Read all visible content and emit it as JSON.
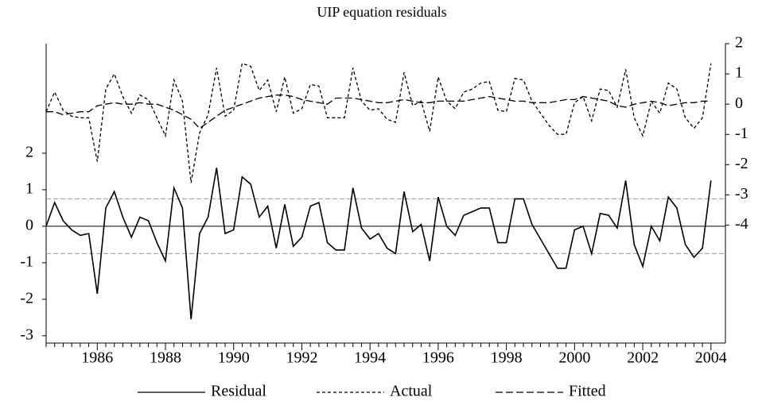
{
  "chart_data": {
    "type": "line",
    "title": "UIP equation residuals",
    "categories": [
      null,
      null,
      null,
      null,
      null,
      null,
      "1986",
      null,
      null,
      null,
      null,
      null,
      null,
      null,
      "1988",
      null,
      null,
      null,
      null,
      null,
      null,
      null,
      "1990",
      null,
      null,
      null,
      null,
      null,
      null,
      null,
      "1992",
      null,
      null,
      null,
      null,
      null,
      null,
      null,
      "1994",
      null,
      null,
      null,
      null,
      null,
      null,
      null,
      "1996",
      null,
      null,
      null,
      null,
      null,
      null,
      null,
      "1998",
      null,
      null,
      null,
      null,
      null,
      null,
      null,
      "2000",
      null,
      null,
      null,
      null,
      null,
      null,
      null,
      "2002",
      null,
      null,
      null,
      null,
      null,
      null,
      null,
      "2004"
    ],
    "series": [
      {
        "name": "Residual",
        "color": "#000000",
        "dash": "none",
        "axis": "y",
        "values": [
          0,
          0.65,
          0.15,
          -0.1,
          -0.25,
          -0.2,
          -1.85,
          0.5,
          0.95,
          0.25,
          -0.3,
          0.25,
          0.15,
          -0.45,
          -0.95,
          1.05,
          0.5,
          -2.55,
          -0.2,
          0.25,
          1.6,
          -0.2,
          -0.1,
          1.35,
          1.15,
          0.25,
          0.55,
          -0.6,
          0.6,
          -0.55,
          -0.3,
          0.55,
          0.65,
          -0.45,
          -0.65,
          -0.65,
          1.05,
          -0.05,
          -0.35,
          -0.2,
          -0.6,
          -0.75,
          0.95,
          -0.15,
          0.05,
          -0.95,
          0.8,
          0,
          -0.25,
          0.3,
          0.4,
          0.5,
          0.5,
          -0.45,
          -0.45,
          0.75,
          0.75,
          0.05,
          -0.35,
          -0.75,
          -1.15,
          -1.15,
          -0.1,
          0,
          -0.75,
          0.35,
          0.3,
          -0.05,
          1.25,
          -0.5,
          -1.1,
          0,
          -0.4,
          0.8,
          0.5,
          -0.5,
          -0.85,
          -0.6,
          1.25
        ]
      },
      {
        "name": "Actual",
        "color": "#000000",
        "dash": "4,3",
        "axis": "y2",
        "values": [
          -0.25,
          0.4,
          -0.2,
          -0.4,
          -0.45,
          -0.45,
          -1.9,
          0.5,
          1.0,
          0.25,
          -0.3,
          0.3,
          0.15,
          -0.45,
          -1.05,
          0.8,
          0.1,
          -2.6,
          -0.95,
          -0.35,
          1.2,
          -0.4,
          -0.2,
          1.35,
          1.25,
          0.45,
          0.8,
          -0.25,
          0.9,
          -0.3,
          -0.15,
          0.65,
          0.6,
          -0.45,
          -0.45,
          -0.45,
          1.2,
          0.1,
          -0.2,
          -0.15,
          -0.5,
          -0.6,
          1.05,
          -0.05,
          0.1,
          -0.9,
          0.9,
          0.1,
          -0.15,
          0.4,
          0.5,
          0.7,
          0.75,
          -0.2,
          -0.25,
          0.85,
          0.8,
          0.1,
          -0.3,
          -0.7,
          -1.0,
          -1.0,
          0.05,
          0.25,
          -0.55,
          0.5,
          0.45,
          -0.1,
          1.15,
          -0.45,
          -1.05,
          0.1,
          -0.3,
          0.7,
          0.5,
          -0.45,
          -0.8,
          -0.45,
          1.35
        ]
      },
      {
        "name": "Fitted",
        "color": "#000000",
        "dash": "9,4",
        "axis": "y2",
        "values": [
          -0.25,
          -0.25,
          -0.35,
          -0.3,
          -0.25,
          -0.25,
          -0.05,
          0,
          0.05,
          0,
          0,
          0.05,
          0,
          0,
          -0.1,
          -0.2,
          -0.35,
          -0.5,
          -0.8,
          -0.6,
          -0.4,
          -0.2,
          -0.1,
          0,
          0.1,
          0.2,
          0.25,
          0.3,
          0.3,
          0.25,
          0.15,
          0.1,
          0.05,
          0,
          0.2,
          0.2,
          0.2,
          0.15,
          0.1,
          0.05,
          0.05,
          0.1,
          0.15,
          0.1,
          0.05,
          0.05,
          0.1,
          0.1,
          0.1,
          0.1,
          0.15,
          0.2,
          0.25,
          0.2,
          0.15,
          0.1,
          0.1,
          0.05,
          0.05,
          0.05,
          0.1,
          0.15,
          0.15,
          0.25,
          0.2,
          0.15,
          0.1,
          -0.05,
          -0.1,
          0,
          0.05,
          0.1,
          0.05,
          -0.05,
          0,
          0.05,
          0.05,
          0.1,
          0.1
        ]
      }
    ],
    "ylim": [
      -3.2,
      5
    ],
    "yticks": [
      -3,
      -2,
      -1,
      0,
      1,
      2
    ],
    "y2lim": [
      -7.9,
      2
    ],
    "y2ticks": [
      -4,
      -3,
      -2,
      -1,
      0,
      1,
      2
    ],
    "reference_lines": [
      0,
      0.75,
      -0.75
    ]
  }
}
